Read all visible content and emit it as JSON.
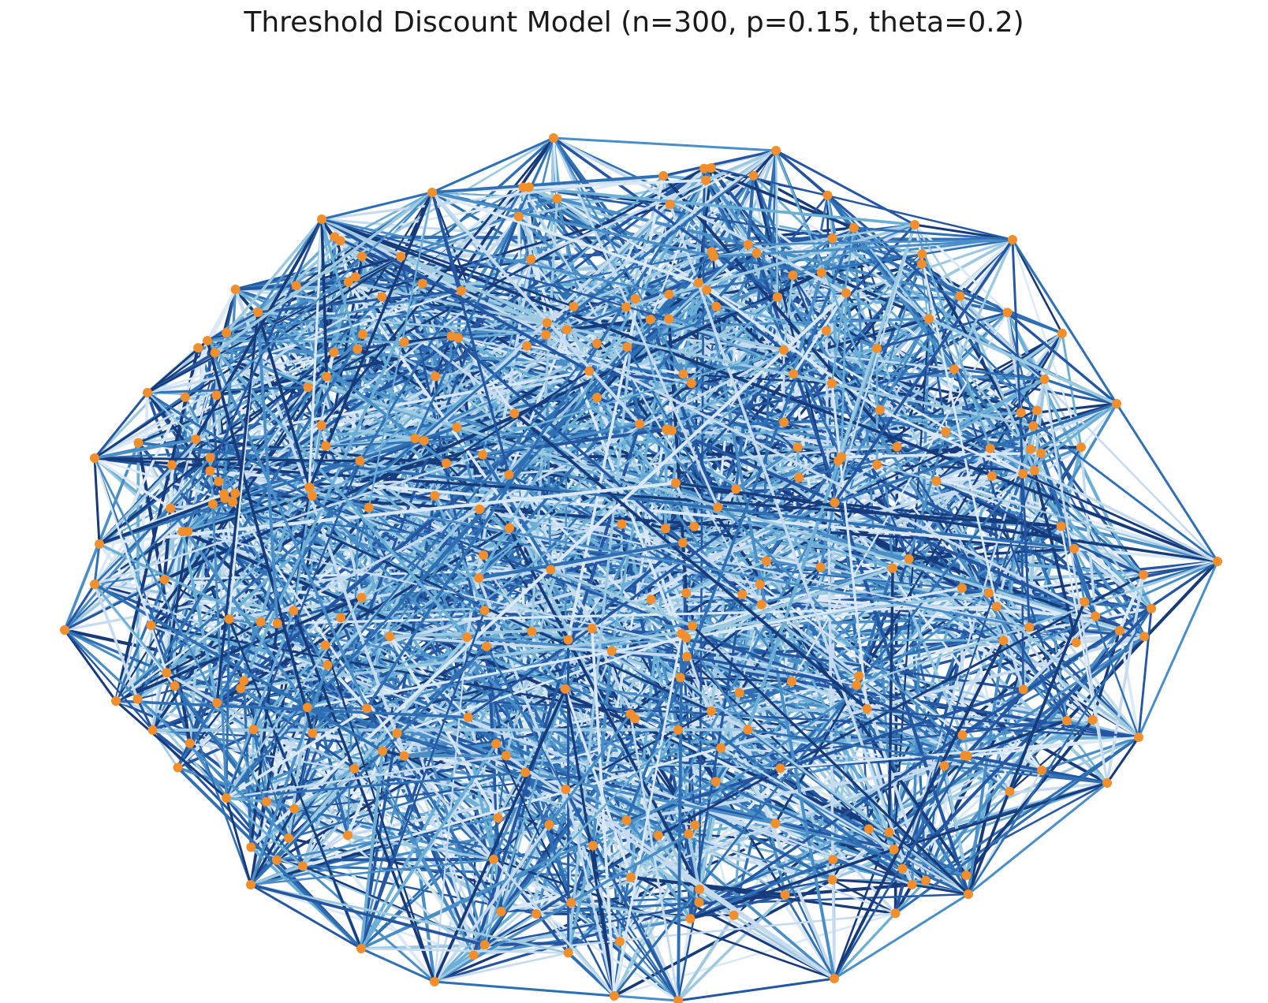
{
  "figure": {
    "title": "Threshold Discount Model (n=300, p=0.15, theta=0.2)"
  },
  "graph": {
    "nodes": 300,
    "p": 0.15,
    "theta": 0.2,
    "axis_visible": false,
    "layout": "spring",
    "node_color": "#f28e2b",
    "edge_colormap": "Blues",
    "edge_colors": [
      "#dbe9f6",
      "#c6dbef",
      "#9ecae1",
      "#6baed6",
      "#4a8ec8",
      "#2f6fb3",
      "#2456a2",
      "#173a7a"
    ]
  }
}
